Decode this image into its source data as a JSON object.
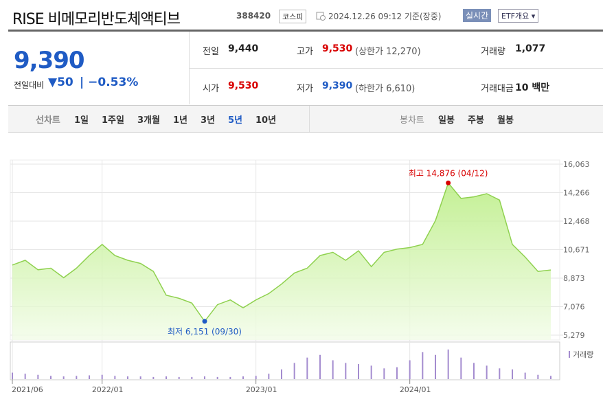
{
  "header": {
    "title": "RISE 비메모리반도체액티브",
    "code": "388420",
    "market": "코스피",
    "time": "2024.12.26 09:12 기준(장중)",
    "realtime": "실시간",
    "etf": "ETF개요"
  },
  "quote": {
    "price": "9,390",
    "change_label": "전일대비",
    "change": "50",
    "change_rate": "−0.53%"
  },
  "info": [
    {
      "label": "전일",
      "value": "9,440"
    },
    {
      "label": "고가",
      "value": "9,530",
      "note": "(상한가 12,270)"
    },
    {
      "label": "거래량",
      "value": "1,077"
    },
    {
      "label": "시가",
      "value": "9,530"
    },
    {
      "label": "저가",
      "value": "9,390",
      "note": "(하한가 6,610)"
    },
    {
      "label": "거래대금",
      "value": "10 백만"
    }
  ],
  "tabs": {
    "line_label": "선차트",
    "line": [
      "1일",
      "1주일",
      "3개월",
      "1년",
      "3년",
      "5년",
      "10년"
    ],
    "active": "5년",
    "candle_label": "봉차트",
    "candle": [
      "일봉",
      "주봉",
      "월봉"
    ]
  },
  "chart_data": {
    "type": "line",
    "x": [
      "2021/06",
      "2021/07",
      "2021/08",
      "2021/09",
      "2021/10",
      "2021/11",
      "2021/12",
      "2022/01",
      "2022/02",
      "2022/03",
      "2022/04",
      "2022/05",
      "2022/06",
      "2022/07",
      "2022/08",
      "2022/09",
      "2022/10",
      "2022/11",
      "2022/12",
      "2023/01",
      "2023/02",
      "2023/03",
      "2023/04",
      "2023/05",
      "2023/06",
      "2023/07",
      "2023/08",
      "2023/09",
      "2023/10",
      "2023/11",
      "2023/12",
      "2024/01",
      "2024/02",
      "2024/03",
      "2024/04",
      "2024/05",
      "2024/06",
      "2024/07",
      "2024/08",
      "2024/09",
      "2024/10",
      "2024/11",
      "2024/12"
    ],
    "series": [
      {
        "name": "가격",
        "color": "#8fd14f",
        "values": [
          9700,
          10000,
          9400,
          9500,
          8900,
          9500,
          10300,
          11000,
          10300,
          10000,
          9800,
          9300,
          7800,
          7600,
          7300,
          6151,
          7200,
          7500,
          7000,
          7500,
          7900,
          8500,
          9200,
          9500,
          10300,
          10500,
          10000,
          10600,
          9600,
          10500,
          10700,
          10800,
          11000,
          12500,
          14876,
          13900,
          14000,
          14200,
          13800,
          11000,
          10200,
          9300,
          9390
        ]
      },
      {
        "name": "거래량",
        "color": "#a48ccf",
        "axis": "y2",
        "values": [
          12,
          10,
          8,
          6,
          5,
          6,
          7,
          8,
          6,
          5,
          5,
          4,
          5,
          4,
          4,
          5,
          4,
          4,
          5,
          6,
          10,
          18,
          30,
          40,
          45,
          35,
          30,
          28,
          25,
          20,
          22,
          35,
          50,
          45,
          55,
          40,
          30,
          25,
          20,
          18,
          12,
          8,
          6
        ]
      }
    ],
    "ylim": [
      5279,
      16063
    ],
    "yticks": [
      {
        "value": 16063,
        "label": "16,063"
      },
      {
        "value": 14266,
        "label": "14,266"
      },
      {
        "value": 12468,
        "label": "12,468"
      },
      {
        "value": 10671,
        "label": "10,671"
      },
      {
        "value": 8873,
        "label": "8,873"
      },
      {
        "value": 7076,
        "label": "7,076"
      },
      {
        "value": 5279,
        "label": "5,279"
      }
    ],
    "y2lim": [
      0,
      60
    ],
    "xticks": [
      "2021/06",
      "2022/01",
      "2023/01",
      "2024/01"
    ],
    "grid": true,
    "annotations": [
      {
        "label": "최고 14,876 (04/12)",
        "x": "2024/04",
        "value": 14876,
        "color": "#d80000"
      },
      {
        "label": "최저 6,151 (09/30)",
        "x": "2022/09",
        "value": 6151,
        "color": "#1f5bc4"
      }
    ]
  }
}
